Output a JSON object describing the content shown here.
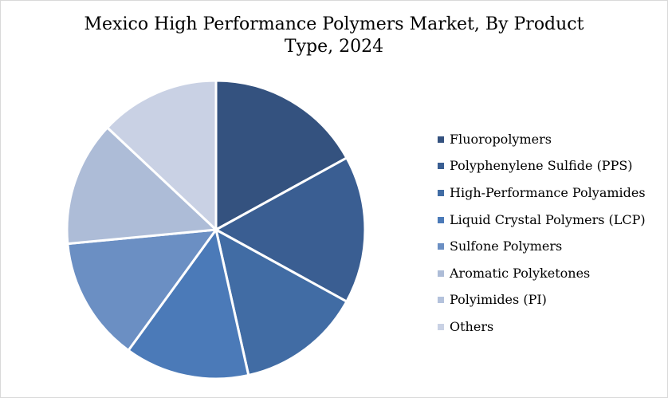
{
  "chart_data": {
    "type": "pie",
    "title": "Mexico High Performance Polymers Market, By Product Type, 2024",
    "title_lines": [
      "Mexico High Performance Polymers Market, By Product",
      "Type, 2024"
    ],
    "legend_position": "right",
    "slices": [
      {
        "label": "Fluoropolymers",
        "value": 17,
        "color": "#34527f"
      },
      {
        "label": "Polyphenylene Sulfide (PPS)",
        "value": 16,
        "color": "#3a5e92"
      },
      {
        "label": "High-Performance Polyamides",
        "value": 13.5,
        "color": "#416ca4"
      },
      {
        "label": "Liquid Crystal Polymers (LCP)",
        "value": 13.5,
        "color": "#4b7ab8"
      },
      {
        "label": "Sulfone Polymers",
        "value": 13.5,
        "color": "#6b8fc3"
      },
      {
        "label": "Aromatic Polyketones",
        "value": 13.5,
        "color": "#adbcd7"
      },
      {
        "label": "Polyimides (PI)",
        "value": 0,
        "color": "#b4c2dc"
      },
      {
        "label": "Others",
        "value": 13,
        "color": "#c9d1e4"
      }
    ]
  }
}
